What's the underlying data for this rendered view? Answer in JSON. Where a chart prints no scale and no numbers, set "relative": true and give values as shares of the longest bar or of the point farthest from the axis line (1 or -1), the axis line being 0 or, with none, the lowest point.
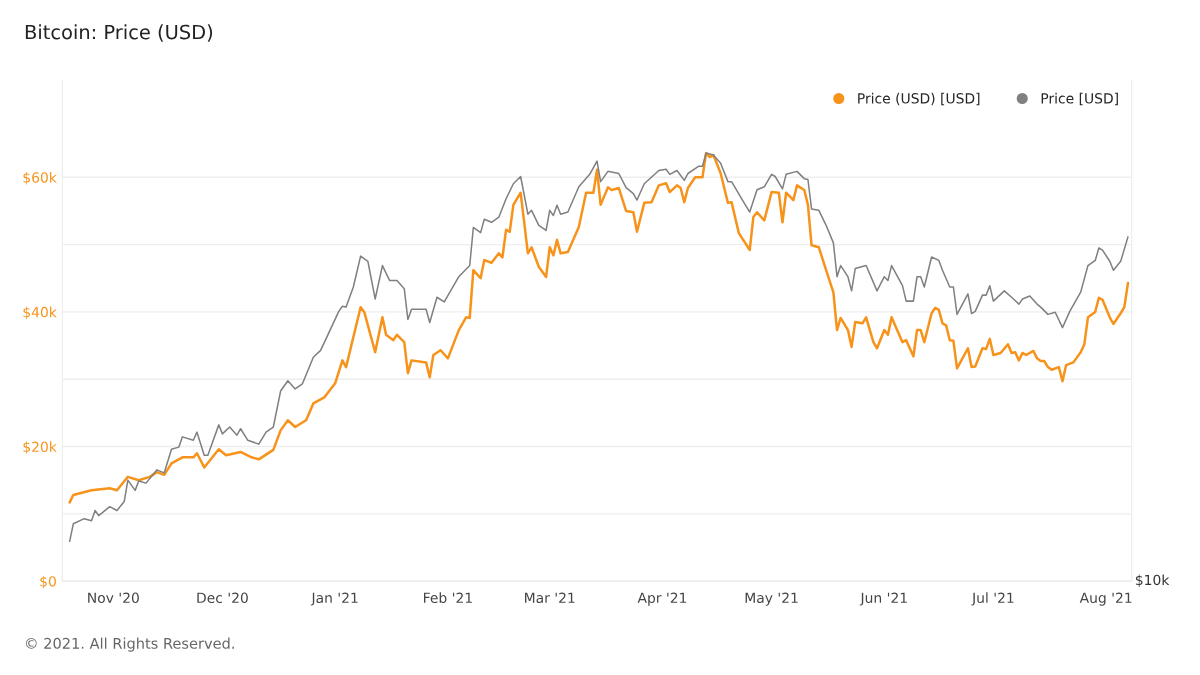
{
  "chart_data": [
    {
      "type": "line",
      "title": "Bitcoin: Price (USD)",
      "annotations": [
        "© 2021. All Rights Reserved."
      ],
      "xlim": [
        "2020-10-18",
        "2021-08-08"
      ],
      "xticks": [
        {
          "value": "2020-11-01",
          "label": "Nov '20"
        },
        {
          "value": "2020-12-01",
          "label": "Dec '20"
        },
        {
          "value": "2021-01-01",
          "label": "Jan '21"
        },
        {
          "value": "2021-02-01",
          "label": "Feb '21"
        },
        {
          "value": "2021-03-01",
          "label": "Mar '21"
        },
        {
          "value": "2021-04-01",
          "label": "Apr '21"
        },
        {
          "value": "2021-05-01",
          "label": "May '21"
        },
        {
          "value": "2021-06-01",
          "label": "Jun '21"
        },
        {
          "value": "2021-07-01",
          "label": "Jul '21"
        },
        {
          "value": "2021-08-01",
          "label": "Aug '21"
        }
      ],
      "ylim": [
        0,
        74400
      ],
      "yticks": [
        {
          "value": 0,
          "label": "$0"
        },
        {
          "value": 10000,
          "label": null
        },
        {
          "value": 20000,
          "label": "$20k"
        },
        {
          "value": 30000,
          "label": null
        },
        {
          "value": 40000,
          "label": "$40k"
        },
        {
          "value": 50000,
          "label": null
        },
        {
          "value": 60000,
          "label": "$60k"
        }
      ],
      "grid": "y",
      "legend": "top right",
      "line_style": "solid",
      "series": [
        {
          "name": "Price (USD) [USD]",
          "color": "#f7931a",
          "x": [
            "2020-10-20",
            "2020-10-21",
            "2020-10-26",
            "2020-10-31",
            "2020-11-02",
            "2020-11-05",
            "2020-11-08",
            "2020-11-11",
            "2020-11-13",
            "2020-11-15",
            "2020-11-17",
            "2020-11-20",
            "2020-11-23",
            "2020-11-24",
            "2020-11-26",
            "2020-11-30",
            "2020-12-02",
            "2020-12-06",
            "2020-12-09",
            "2020-12-11",
            "2020-12-15",
            "2020-12-17",
            "2020-12-19",
            "2020-12-21",
            "2020-12-24",
            "2020-12-26",
            "2020-12-29",
            "2021-01-01",
            "2021-01-03",
            "2021-01-04",
            "2021-01-08",
            "2021-01-09",
            "2021-01-12",
            "2021-01-14",
            "2021-01-15",
            "2021-01-17",
            "2021-01-18",
            "2021-01-20",
            "2021-01-21",
            "2021-01-22",
            "2021-01-26",
            "2021-01-27",
            "2021-01-28",
            "2021-01-30",
            "2021-02-01",
            "2021-02-04",
            "2021-02-06",
            "2021-02-07",
            "2021-02-08",
            "2021-02-10",
            "2021-02-11",
            "2021-02-13",
            "2021-02-15",
            "2021-02-16",
            "2021-02-17",
            "2021-02-18",
            "2021-02-19",
            "2021-02-21",
            "2021-02-23",
            "2021-02-24",
            "2021-02-26",
            "2021-02-28",
            "2021-03-01",
            "2021-03-02",
            "2021-03-03",
            "2021-03-04",
            "2021-03-06",
            "2021-03-09",
            "2021-03-11",
            "2021-03-13",
            "2021-03-14",
            "2021-03-15",
            "2021-03-17",
            "2021-03-18",
            "2021-03-20",
            "2021-03-22",
            "2021-03-24",
            "2021-03-25",
            "2021-03-27",
            "2021-03-29",
            "2021-03-31",
            "2021-04-02",
            "2021-04-03",
            "2021-04-05",
            "2021-04-06",
            "2021-04-07",
            "2021-04-08",
            "2021-04-10",
            "2021-04-12",
            "2021-04-13",
            "2021-04-14",
            "2021-04-15",
            "2021-04-17",
            "2021-04-19",
            "2021-04-20",
            "2021-04-22",
            "2021-04-25",
            "2021-04-26",
            "2021-04-27",
            "2021-04-29",
            "2021-05-01",
            "2021-05-03",
            "2021-05-04",
            "2021-05-05",
            "2021-05-07",
            "2021-05-08",
            "2021-05-10",
            "2021-05-11",
            "2021-05-12",
            "2021-05-14",
            "2021-05-16",
            "2021-05-18",
            "2021-05-19",
            "2021-05-20",
            "2021-05-22",
            "2021-05-23",
            "2021-05-24",
            "2021-05-26",
            "2021-05-27",
            "2021-05-29",
            "2021-05-30",
            "2021-06-01",
            "2021-06-02",
            "2021-06-03",
            "2021-06-06",
            "2021-06-07",
            "2021-06-09",
            "2021-06-10",
            "2021-06-11",
            "2021-06-12",
            "2021-06-14",
            "2021-06-15",
            "2021-06-16",
            "2021-06-17",
            "2021-06-18",
            "2021-06-19",
            "2021-06-20",
            "2021-06-21",
            "2021-06-24",
            "2021-06-25",
            "2021-06-26",
            "2021-06-28",
            "2021-06-29",
            "2021-06-30",
            "2021-07-01",
            "2021-07-03",
            "2021-07-05",
            "2021-07-06",
            "2021-07-07",
            "2021-07-08",
            "2021-07-09",
            "2021-07-10",
            "2021-07-12",
            "2021-07-13",
            "2021-07-14",
            "2021-07-15",
            "2021-07-16",
            "2021-07-17",
            "2021-07-19",
            "2021-07-20",
            "2021-07-21",
            "2021-07-23",
            "2021-07-25",
            "2021-07-26",
            "2021-07-27",
            "2021-07-29",
            "2021-07-30",
            "2021-07-31",
            "2021-08-02",
            "2021-08-03",
            "2021-08-05",
            "2021-08-06",
            "2021-08-07"
          ],
          "values": [
            11700,
            12800,
            13500,
            13800,
            13500,
            15500,
            15000,
            15500,
            16200,
            15800,
            17500,
            18400,
            18400,
            19000,
            16900,
            19600,
            18700,
            19200,
            18400,
            18100,
            19500,
            22400,
            23900,
            22900,
            23900,
            26400,
            27300,
            29400,
            32800,
            31800,
            40700,
            40000,
            34000,
            39200,
            36600,
            35800,
            36600,
            35500,
            30900,
            32800,
            32500,
            30300,
            33600,
            34300,
            33100,
            37300,
            39200,
            39100,
            46200,
            45000,
            47700,
            47300,
            48700,
            48100,
            52200,
            51900,
            55900,
            57700,
            48700,
            49600,
            46700,
            45200,
            49600,
            48400,
            50700,
            48700,
            48900,
            52600,
            57700,
            57700,
            61100,
            55900,
            58500,
            58100,
            58400,
            55000,
            54800,
            51900,
            56200,
            56300,
            58800,
            59100,
            57800,
            58800,
            58400,
            56300,
            58400,
            60000,
            60000,
            63600,
            63000,
            63300,
            60600,
            56200,
            56300,
            51700,
            49200,
            54100,
            54800,
            53600,
            57800,
            57700,
            53300,
            57700,
            56600,
            58800,
            58100,
            55900,
            49900,
            49600,
            46200,
            42900,
            37300,
            39100,
            37300,
            34800,
            38500,
            38300,
            39200,
            35500,
            34600,
            37300,
            36600,
            39200,
            35500,
            35800,
            33400,
            37300,
            37300,
            35500,
            39800,
            40600,
            40300,
            38300,
            38000,
            35800,
            35700,
            31600,
            34600,
            31800,
            31900,
            34600,
            34500,
            36000,
            33600,
            33900,
            35200,
            33900,
            34000,
            32800,
            33900,
            33600,
            34200,
            33100,
            32700,
            32700,
            31800,
            31400,
            31800,
            29700,
            32100,
            32500,
            34000,
            35200,
            39200,
            40000,
            42100,
            41800,
            39200,
            38200,
            39800,
            40700,
            44300
          ]
        }
      ]
    },
    {
      "type": "line",
      "relative": true,
      "annotations": [
        "$10k"
      ],
      "xlim": [
        "2020-10-18",
        "2021-08-08"
      ],
      "legend": "top right",
      "line_style": "solid",
      "series": [
        {
          "name": "Price [USD]",
          "color": "#808080",
          "x": [
            "2020-10-20",
            "2020-10-21",
            "2020-10-24",
            "2020-10-26",
            "2020-10-27",
            "2020-10-28",
            "2020-10-31",
            "2020-11-02",
            "2020-11-04",
            "2020-11-05",
            "2020-11-07",
            "2020-11-08",
            "2020-11-10",
            "2020-11-13",
            "2020-11-15",
            "2020-11-17",
            "2020-11-19",
            "2020-11-20",
            "2020-11-23",
            "2020-11-24",
            "2020-11-26",
            "2020-11-27",
            "2020-11-30",
            "2020-12-01",
            "2020-12-03",
            "2020-12-05",
            "2020-12-06",
            "2020-12-08",
            "2020-12-11",
            "2020-12-13",
            "2020-12-15",
            "2020-12-17",
            "2020-12-19",
            "2020-12-21",
            "2020-12-23",
            "2020-12-26",
            "2020-12-28",
            "2020-12-30",
            "2021-01-02",
            "2021-01-03",
            "2021-01-04",
            "2021-01-06",
            "2021-01-08",
            "2021-01-10",
            "2021-01-12",
            "2021-01-14",
            "2021-01-16",
            "2021-01-18",
            "2021-01-20",
            "2021-01-21",
            "2021-01-22",
            "2021-01-26",
            "2021-01-27",
            "2021-01-29",
            "2021-01-31",
            "2021-02-04",
            "2021-02-07",
            "2021-02-08",
            "2021-02-10",
            "2021-02-11",
            "2021-02-13",
            "2021-02-15",
            "2021-02-17",
            "2021-02-19",
            "2021-02-21",
            "2021-02-23",
            "2021-02-24",
            "2021-02-26",
            "2021-02-28",
            "2021-03-01",
            "2021-03-02",
            "2021-03-03",
            "2021-03-04",
            "2021-03-06",
            "2021-03-09",
            "2021-03-12",
            "2021-03-14",
            "2021-03-15",
            "2021-03-17",
            "2021-03-20",
            "2021-03-22",
            "2021-03-24",
            "2021-03-25",
            "2021-03-27",
            "2021-03-31",
            "2021-04-02",
            "2021-04-03",
            "2021-04-05",
            "2021-04-07",
            "2021-04-08",
            "2021-04-11",
            "2021-04-12",
            "2021-04-13",
            "2021-04-15",
            "2021-04-17",
            "2021-04-19",
            "2021-04-20",
            "2021-04-23",
            "2021-04-25",
            "2021-04-27",
            "2021-04-29",
            "2021-05-01",
            "2021-05-02",
            "2021-05-04",
            "2021-05-05",
            "2021-05-08",
            "2021-05-10",
            "2021-05-11",
            "2021-05-12",
            "2021-05-14",
            "2021-05-16",
            "2021-05-18",
            "2021-05-19",
            "2021-05-20",
            "2021-05-22",
            "2021-05-23",
            "2021-05-24",
            "2021-05-27",
            "2021-05-30",
            "2021-06-01",
            "2021-06-02",
            "2021-06-03",
            "2021-06-06",
            "2021-06-07",
            "2021-06-09",
            "2021-06-10",
            "2021-06-11",
            "2021-06-12",
            "2021-06-14",
            "2021-06-16",
            "2021-06-17",
            "2021-06-19",
            "2021-06-20",
            "2021-06-21",
            "2021-06-24",
            "2021-06-25",
            "2021-06-26",
            "2021-06-28",
            "2021-06-29",
            "2021-06-30",
            "2021-07-01",
            "2021-07-04",
            "2021-07-06",
            "2021-07-08",
            "2021-07-09",
            "2021-07-11",
            "2021-07-13",
            "2021-07-14",
            "2021-07-16",
            "2021-07-18",
            "2021-07-20",
            "2021-07-22",
            "2021-07-25",
            "2021-07-27",
            "2021-07-29",
            "2021-07-30",
            "2021-07-31",
            "2021-08-02",
            "2021-08-03",
            "2021-08-05",
            "2021-08-07"
          ],
          "values": [
            0.093,
            0.134,
            0.146,
            0.141,
            0.165,
            0.153,
            0.174,
            0.165,
            0.186,
            0.236,
            0.212,
            0.234,
            0.229,
            0.26,
            0.253,
            0.308,
            0.313,
            0.337,
            0.329,
            0.348,
            0.294,
            0.294,
            0.365,
            0.344,
            0.36,
            0.341,
            0.356,
            0.329,
            0.32,
            0.348,
            0.36,
            0.444,
            0.468,
            0.449,
            0.461,
            0.523,
            0.539,
            0.575,
            0.63,
            0.642,
            0.64,
            0.687,
            0.759,
            0.747,
            0.659,
            0.737,
            0.702,
            0.702,
            0.683,
            0.611,
            0.635,
            0.635,
            0.604,
            0.663,
            0.652,
            0.711,
            0.737,
            0.826,
            0.814,
            0.845,
            0.838,
            0.85,
            0.893,
            0.928,
            0.945,
            0.857,
            0.866,
            0.831,
            0.819,
            0.866,
            0.854,
            0.878,
            0.857,
            0.862,
            0.921,
            0.95,
            0.981,
            0.933,
            0.957,
            0.952,
            0.919,
            0.905,
            0.89,
            0.928,
            0.959,
            0.962,
            0.95,
            0.959,
            0.936,
            0.952,
            0.969,
            0.969,
            1,
            0.995,
            0.976,
            0.933,
            0.933,
            0.89,
            0.862,
            0.914,
            0.921,
            0.95,
            0.945,
            0.916,
            0.95,
            0.957,
            0.94,
            0.938,
            0.869,
            0.866,
            0.831,
            0.79,
            0.711,
            0.737,
            0.711,
            0.678,
            0.73,
            0.737,
            0.678,
            0.711,
            0.702,
            0.737,
            0.69,
            0.654,
            0.654,
            0.711,
            0.711,
            0.687,
            0.757,
            0.749,
            0.726,
            0.687,
            0.687,
            0.623,
            0.671,
            0.625,
            0.63,
            0.668,
            0.668,
            0.69,
            0.654,
            0.678,
            0.663,
            0.647,
            0.659,
            0.666,
            0.647,
            0.64,
            0.623,
            0.628,
            0.592,
            0.63,
            0.675,
            0.737,
            0.749,
            0.778,
            0.773,
            0.747,
            0.726,
            0.747,
            0.804
          ]
        }
      ]
    }
  ]
}
